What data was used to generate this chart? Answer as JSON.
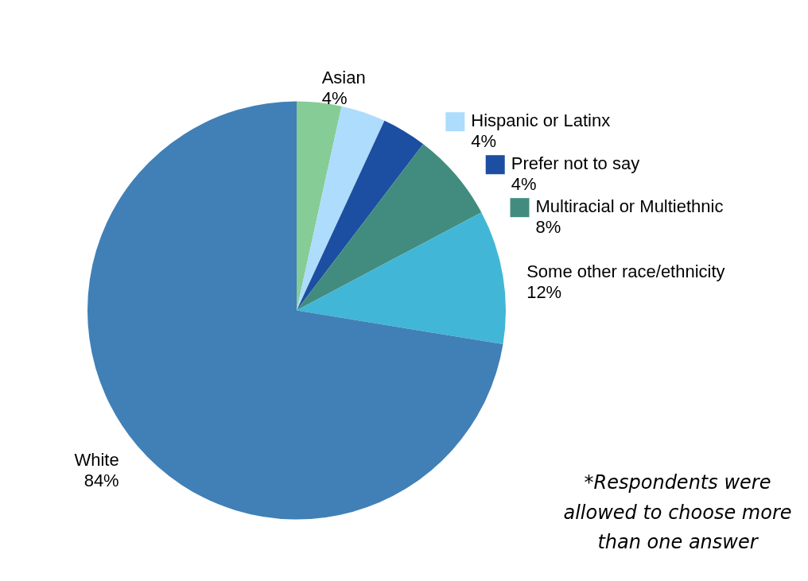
{
  "chart_data": {
    "type": "pie",
    "categories": [
      "Asian",
      "Hispanic or Latinx",
      "Prefer not to say",
      "Multiracial or Multiethnic",
      "Some other race/ethnicity",
      "White"
    ],
    "values": [
      4,
      4,
      4,
      8,
      12,
      84
    ],
    "colors": [
      "#86cc96",
      "#addcfc",
      "#1c4fa1",
      "#428c7f",
      "#42b6d6",
      "#4080b6"
    ],
    "legend": "top right",
    "value_labels": [
      "4%",
      "4%",
      "4%",
      "8%",
      "12%",
      "84%"
    ],
    "annotations": [
      "*Respondents were allowed to choose more than one answer"
    ]
  }
}
